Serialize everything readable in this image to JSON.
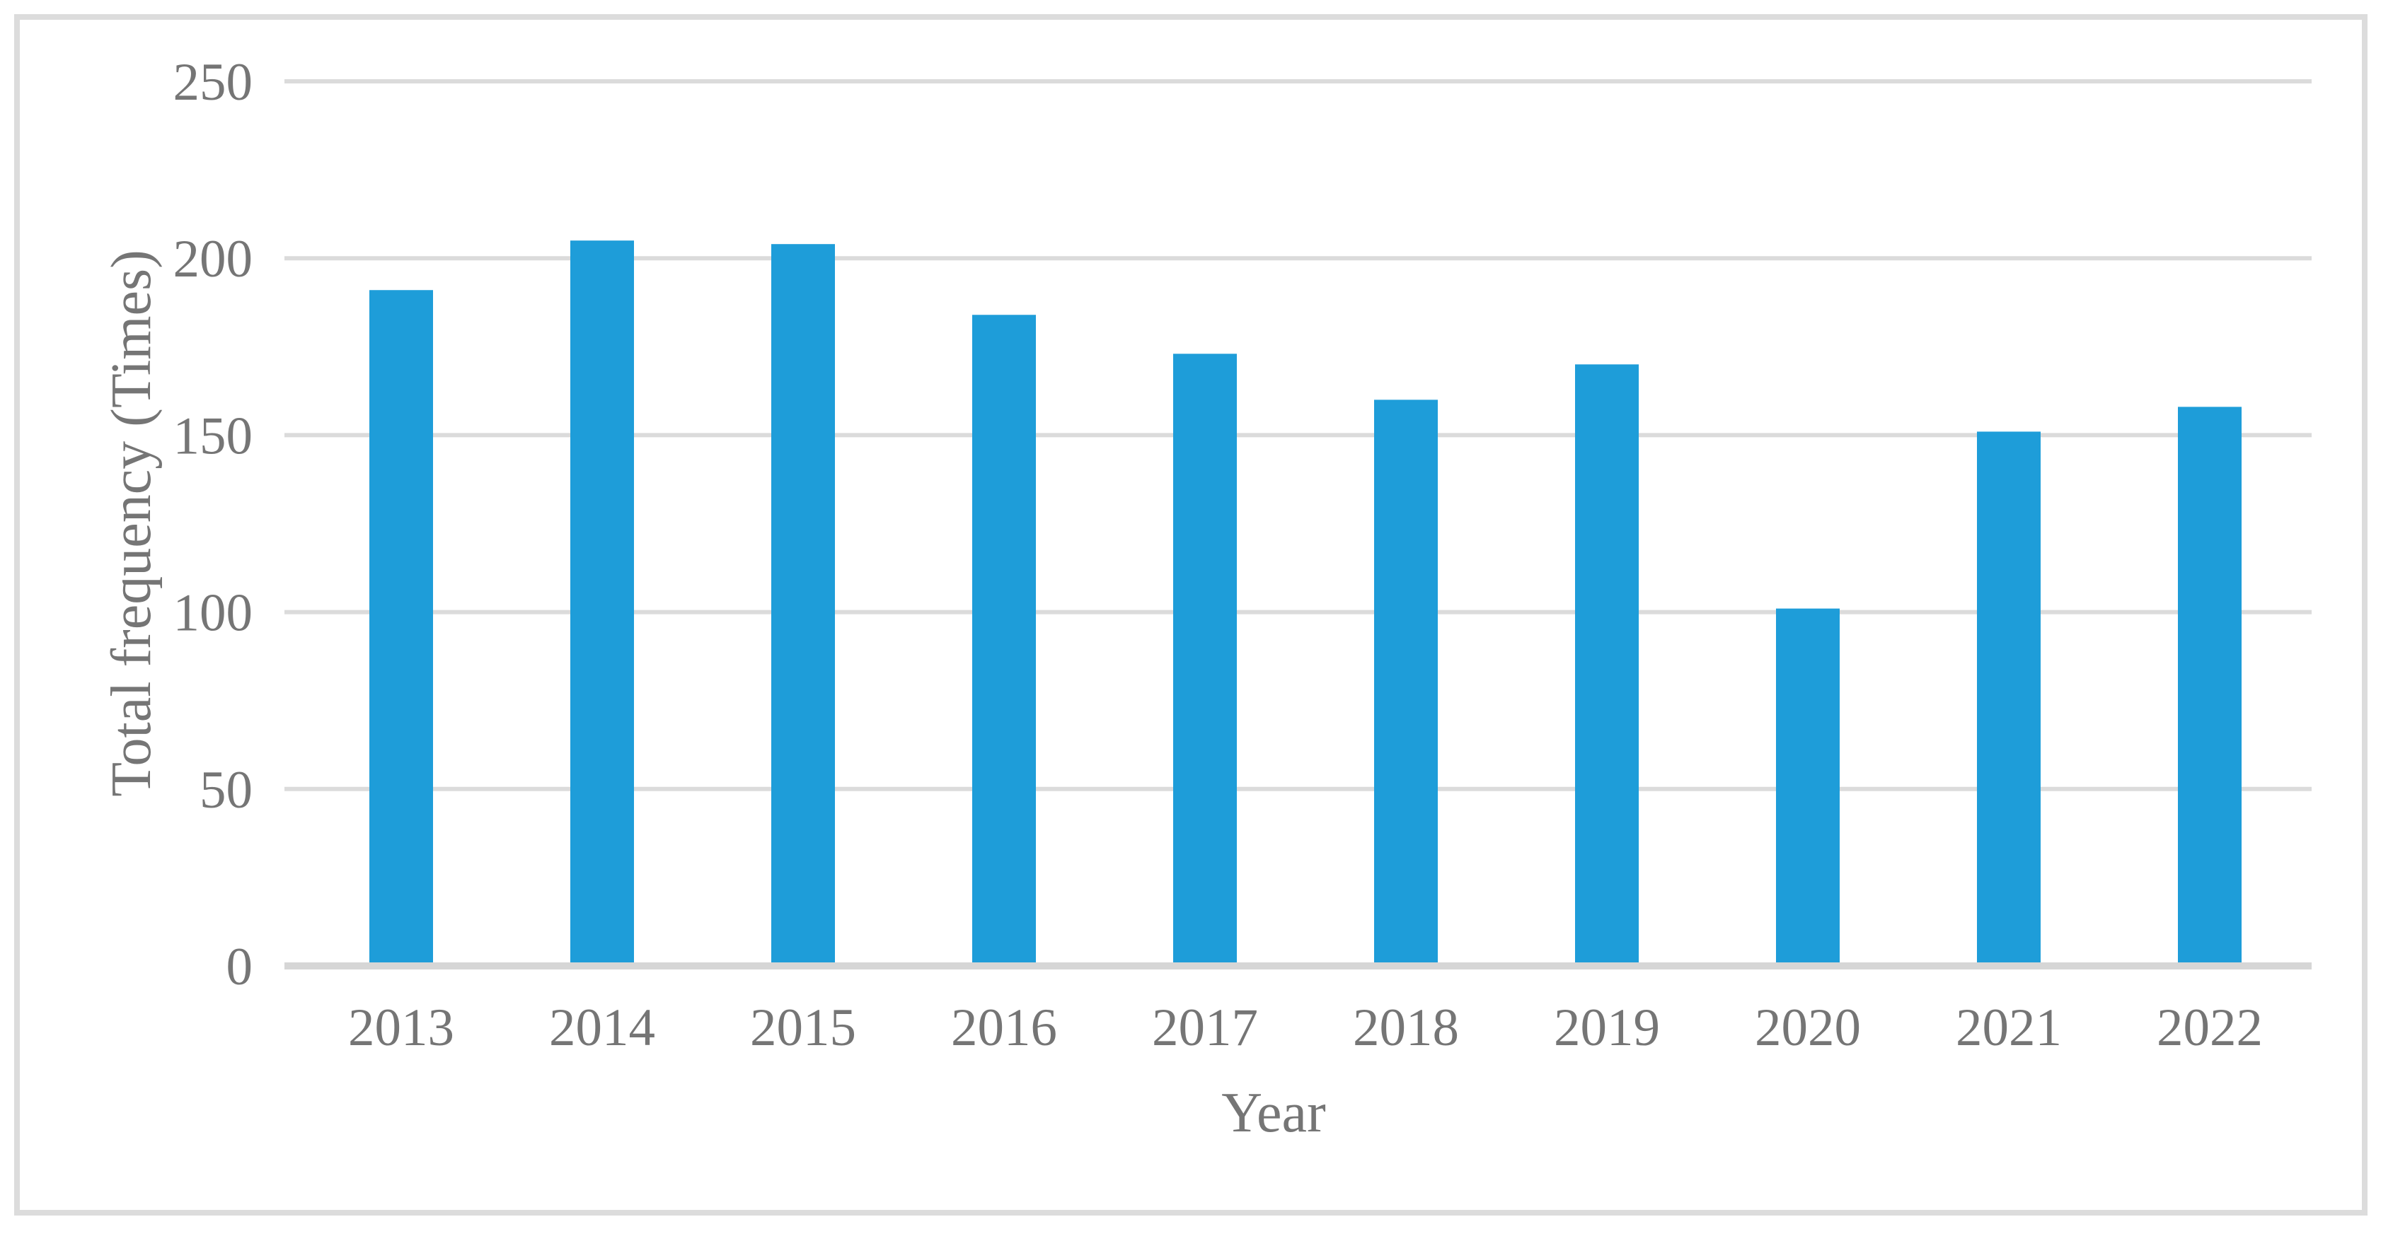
{
  "chart_data": {
    "type": "bar",
    "title": "",
    "categories": [
      "2013",
      "2014",
      "2015",
      "2016",
      "2017",
      "2018",
      "2019",
      "2020",
      "2021",
      "2022"
    ],
    "values": [
      191,
      205,
      204,
      184,
      173,
      160,
      170,
      101,
      151,
      158
    ],
    "xlabel": "Year",
    "ylabel": "Total frequency (Times)",
    "ylim": [
      0,
      250
    ],
    "yticks": [
      0,
      50,
      100,
      150,
      200,
      250
    ],
    "grid": "horizontal",
    "legend": "none"
  },
  "colors": {
    "bar": "#1E9DD9",
    "gridline": "#dbdbdb",
    "axis_line": "#d6d6d6",
    "label_text": "#757575",
    "frame_border": "#dcdcdc",
    "background": "#ffffff"
  }
}
